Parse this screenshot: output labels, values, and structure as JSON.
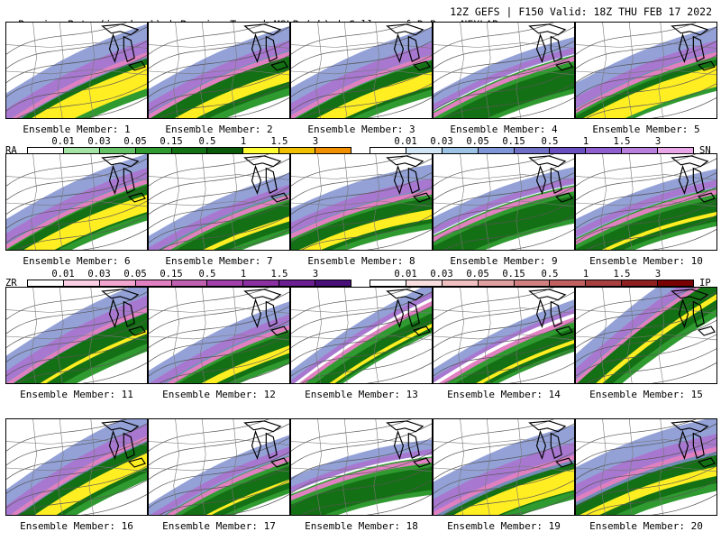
{
  "header": {
    "left": "Precip. Rate (in. hr⁻¹) | Precip. Type | MSLP (mb) | College of DuPage NEXLAB",
    "right": "12Z GEFS | F150 Valid: 18Z THU FEB 17 2022"
  },
  "legend": {
    "rain": {
      "label": "RA",
      "ticks": [
        "0.01",
        "0.03",
        "0.05",
        "0.15",
        "0.5",
        "1",
        "1.5",
        "3"
      ],
      "colors": [
        "#ffffff",
        "#a6e3a6",
        "#66c266",
        "#2f9a2f",
        "#147014",
        "#0a5a0a",
        "#ffff33",
        "#f0c000",
        "#f09000"
      ]
    },
    "snow": {
      "label": "SN",
      "ticks": [
        "0.01",
        "0.03",
        "0.05",
        "0.15",
        "0.5",
        "1",
        "1.5",
        "3"
      ],
      "colors": [
        "#ffffff",
        "#cfe4f5",
        "#9cc3e6",
        "#7f97d6",
        "#6f6fc6",
        "#6a4fc0",
        "#8f5fd0",
        "#b87fdc",
        "#e8a6e8"
      ]
    },
    "freezing_rain": {
      "label": "ZR",
      "ticks": [
        "0.01",
        "0.03",
        "0.05",
        "0.15",
        "0.5",
        "1",
        "1.5",
        "3"
      ],
      "colors": [
        "#ffffff",
        "#fbd0e4",
        "#f2a6cf",
        "#e080c0",
        "#c060b0",
        "#a040a8",
        "#8a30a0",
        "#6a2090",
        "#4a107a"
      ]
    },
    "ice_pellets": {
      "label": "IP",
      "ticks": [
        "0.01",
        "0.03",
        "0.05",
        "0.15",
        "0.5",
        "1",
        "1.5",
        "3"
      ],
      "colors": [
        "#ffffff",
        "#f8dede",
        "#f0c0c0",
        "#e0a0a0",
        "#d08080",
        "#c06060",
        "#a84040",
        "#902020",
        "#780000"
      ]
    }
  },
  "members": [
    {
      "label": "Ensemble Member: 1",
      "band_y": 0.62,
      "band_w": 0.36,
      "green": 0.55,
      "yellow": 0.25,
      "slope": 0.55
    },
    {
      "label": "Ensemble Member: 2",
      "band_y": 0.58,
      "band_w": 0.3,
      "green": 0.55,
      "yellow": 0.12,
      "slope": 0.5
    },
    {
      "label": "Ensemble Member: 3",
      "band_y": 0.6,
      "band_w": 0.34,
      "green": 0.5,
      "yellow": 0.15,
      "slope": 0.48
    },
    {
      "label": "Ensemble Member: 4",
      "band_y": 0.6,
      "band_w": 0.18,
      "green": 0.4,
      "yellow": 0.0,
      "slope": 0.45
    },
    {
      "label": "Ensemble Member: 5",
      "band_y": 0.55,
      "band_w": 0.3,
      "green": 0.45,
      "yellow": 0.22,
      "slope": 0.45
    },
    {
      "label": "Ensemble Member: 6",
      "band_y": 0.55,
      "band_w": 0.3,
      "green": 0.5,
      "yellow": 0.18,
      "slope": 0.52
    },
    {
      "label": "Ensemble Member: 7",
      "band_y": 0.7,
      "band_w": 0.22,
      "green": 0.45,
      "yellow": 0.05,
      "slope": 0.5
    },
    {
      "label": "Ensemble Member: 8",
      "band_y": 0.55,
      "band_w": 0.3,
      "green": 0.45,
      "yellow": 0.1,
      "slope": 0.35
    },
    {
      "label": "Ensemble Member: 9",
      "band_y": 0.55,
      "band_w": 0.18,
      "green": 0.4,
      "yellow": 0.0,
      "slope": 0.4
    },
    {
      "label": "Ensemble Member: 10",
      "band_y": 0.58,
      "band_w": 0.2,
      "green": 0.4,
      "yellow": 0.04,
      "slope": 0.4
    },
    {
      "label": "Ensemble Member: 11",
      "band_y": 0.55,
      "band_w": 0.34,
      "green": 0.55,
      "yellow": 0.04,
      "slope": 0.6
    },
    {
      "label": "Ensemble Member: 12",
      "band_y": 0.7,
      "band_w": 0.26,
      "green": 0.45,
      "yellow": 0.08,
      "slope": 0.55
    },
    {
      "label": "Ensemble Member: 13",
      "band_y": 0.55,
      "band_w": 0.16,
      "green": 0.3,
      "yellow": 0.04,
      "slope": 0.7
    },
    {
      "label": "Ensemble Member: 14",
      "band_y": 0.62,
      "band_w": 0.14,
      "green": 0.35,
      "yellow": 0.04,
      "slope": 0.55
    },
    {
      "label": "Ensemble Member: 15",
      "band_y": 0.35,
      "band_w": 0.3,
      "green": 0.55,
      "yellow": 0.06,
      "slope": 0.85
    },
    {
      "label": "Ensemble Member: 16",
      "band_y": 0.55,
      "band_w": 0.36,
      "green": 0.55,
      "yellow": 0.15,
      "slope": 0.65
    },
    {
      "label": "Ensemble Member: 17",
      "band_y": 0.7,
      "band_w": 0.22,
      "green": 0.4,
      "yellow": 0.03,
      "slope": 0.55
    },
    {
      "label": "Ensemble Member: 18",
      "band_y": 0.55,
      "band_w": 0.16,
      "green": 0.4,
      "yellow": 0.0,
      "slope": 0.3
    },
    {
      "label": "Ensemble Member: 19",
      "band_y": 0.62,
      "band_w": 0.4,
      "green": 0.55,
      "yellow": 0.22,
      "slope": 0.45
    },
    {
      "label": "Ensemble Member: 20",
      "band_y": 0.5,
      "band_w": 0.4,
      "green": 0.55,
      "yellow": 0.1,
      "slope": 0.4
    }
  ]
}
